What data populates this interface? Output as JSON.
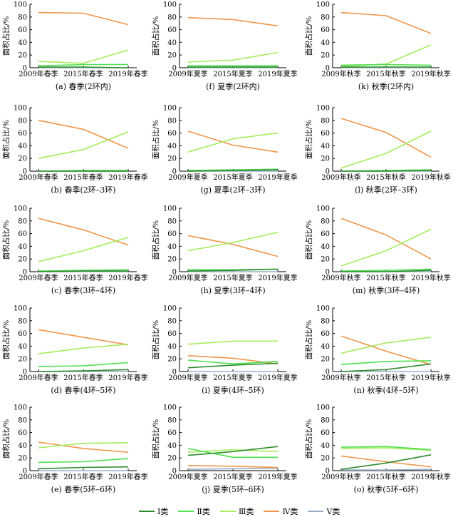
{
  "legend": [
    {
      "label": "Ⅰ类",
      "color": "#2e8b2e"
    },
    {
      "label": "Ⅱ类",
      "color": "#4ee04e"
    },
    {
      "label": "Ⅲ类",
      "color": "#a6ec5c"
    },
    {
      "label": "Ⅳ类",
      "color": "#f0964a"
    },
    {
      "label": "Ⅴ类",
      "color": "#9ab0c8"
    }
  ],
  "chart_data": [
    {
      "type": "line",
      "caption": "(a) 春季(2环内)",
      "ylabel": "面积占比/%",
      "ylim": [
        0,
        100
      ],
      "yticks": [
        0,
        20,
        40,
        60,
        80,
        100
      ],
      "categories": [
        "2009年春季",
        "2015年春季",
        "2019年春季"
      ],
      "series": [
        {
          "name": "Ⅰ类",
          "values": [
            1,
            1,
            0
          ]
        },
        {
          "name": "Ⅱ类",
          "values": [
            3,
            5,
            5
          ]
        },
        {
          "name": "Ⅲ类",
          "values": [
            10,
            7,
            28
          ]
        },
        {
          "name": "Ⅳ类",
          "values": [
            87,
            86,
            68
          ]
        },
        {
          "name": "Ⅴ类",
          "values": [
            0,
            0,
            0
          ]
        }
      ]
    },
    {
      "type": "line",
      "caption": "(f) 夏季(2环内)",
      "ylabel": "面积占比/%",
      "ylim": [
        0,
        100
      ],
      "yticks": [
        0,
        20,
        40,
        60,
        80,
        100
      ],
      "categories": [
        "2009年夏季",
        "2015年夏季",
        "2019年夏季"
      ],
      "series": [
        {
          "name": "Ⅰ类",
          "values": [
            1,
            1,
            1
          ]
        },
        {
          "name": "Ⅱ类",
          "values": [
            3,
            3,
            3
          ]
        },
        {
          "name": "Ⅲ类",
          "values": [
            9,
            12,
            24
          ]
        },
        {
          "name": "Ⅳ类",
          "values": [
            79,
            76,
            66
          ]
        },
        {
          "name": "Ⅴ类",
          "values": [
            0,
            0,
            0
          ]
        }
      ]
    },
    {
      "type": "line",
      "caption": "(k) 秋季(2环内)",
      "ylabel": "面积占比/%",
      "ylim": [
        0,
        100
      ],
      "yticks": [
        0,
        20,
        40,
        60,
        80,
        100
      ],
      "categories": [
        "2009年秋季",
        "2015年秋季",
        "2019年秋季"
      ],
      "series": [
        {
          "name": "Ⅰ类",
          "values": [
            1,
            1,
            1
          ]
        },
        {
          "name": "Ⅱ类",
          "values": [
            4,
            5,
            4
          ]
        },
        {
          "name": "Ⅲ类",
          "values": [
            2,
            6,
            36
          ]
        },
        {
          "name": "Ⅳ类",
          "values": [
            87,
            82,
            54
          ]
        },
        {
          "name": "Ⅴ类",
          "values": [
            0,
            0,
            0
          ]
        }
      ]
    },
    {
      "type": "line",
      "caption": "(b) 春季(2环–3环)",
      "ylabel": "面积占比/%",
      "ylim": [
        0,
        100
      ],
      "yticks": [
        0,
        20,
        40,
        60,
        80,
        100
      ],
      "categories": [
        "2009年春季",
        "2015年春季",
        "2019年春季"
      ],
      "series": [
        {
          "name": "Ⅰ类",
          "values": [
            0,
            0,
            0
          ]
        },
        {
          "name": "Ⅱ类",
          "values": [
            0,
            1,
            1
          ]
        },
        {
          "name": "Ⅲ类",
          "values": [
            20,
            34,
            62
          ]
        },
        {
          "name": "Ⅳ类",
          "values": [
            80,
            66,
            36
          ]
        },
        {
          "name": "Ⅴ类",
          "values": [
            0,
            0,
            0
          ]
        }
      ]
    },
    {
      "type": "line",
      "caption": "(g) 夏季(2环–3环)",
      "ylabel": "面积占比/%",
      "ylim": [
        0,
        100
      ],
      "yticks": [
        0,
        20,
        40,
        60,
        80,
        100
      ],
      "categories": [
        "2009年夏季",
        "2015年夏季",
        "2019年夏季"
      ],
      "series": [
        {
          "name": "Ⅰ类",
          "values": [
            0,
            1,
            2
          ]
        },
        {
          "name": "Ⅱ类",
          "values": [
            1,
            2,
            3
          ]
        },
        {
          "name": "Ⅲ类",
          "values": [
            30,
            51,
            60
          ]
        },
        {
          "name": "Ⅳ类",
          "values": [
            63,
            41,
            30
          ]
        },
        {
          "name": "Ⅴ类",
          "values": [
            0,
            0,
            0
          ]
        }
      ]
    },
    {
      "type": "line",
      "caption": "(l) 秋季(2环–3环)",
      "ylabel": "面积占比/%",
      "ylim": [
        0,
        100
      ],
      "yticks": [
        0,
        20,
        40,
        60,
        80,
        100
      ],
      "categories": [
        "2009年秋季",
        "2015年秋季",
        "2019年秋季"
      ],
      "series": [
        {
          "name": "Ⅰ类",
          "values": [
            0,
            0,
            1
          ]
        },
        {
          "name": "Ⅱ类",
          "values": [
            0,
            1,
            2
          ]
        },
        {
          "name": "Ⅲ类",
          "values": [
            5,
            28,
            63
          ]
        },
        {
          "name": "Ⅳ类",
          "values": [
            83,
            61,
            22
          ]
        },
        {
          "name": "Ⅴ类",
          "values": [
            0,
            0,
            0
          ]
        }
      ]
    },
    {
      "type": "line",
      "caption": "(c) 春季(3环–4环)",
      "ylabel": "面积占比/%",
      "ylim": [
        0,
        100
      ],
      "yticks": [
        0,
        20,
        40,
        60,
        80,
        100
      ],
      "categories": [
        "2009年春季",
        "2015年春季",
        "2019年春季"
      ],
      "series": [
        {
          "name": "Ⅰ类",
          "values": [
            0,
            1,
            1
          ]
        },
        {
          "name": "Ⅱ类",
          "values": [
            1,
            2,
            3
          ]
        },
        {
          "name": "Ⅲ类",
          "values": [
            16,
            33,
            54
          ]
        },
        {
          "name": "Ⅳ类",
          "values": [
            84,
            66,
            42
          ]
        },
        {
          "name": "Ⅴ类",
          "values": [
            0,
            0,
            0
          ]
        }
      ]
    },
    {
      "type": "line",
      "caption": "(h) 夏季(3环–4环)",
      "ylabel": "面积占比/%",
      "ylim": [
        0,
        100
      ],
      "yticks": [
        0,
        20,
        40,
        60,
        80,
        100
      ],
      "categories": [
        "2009年夏季",
        "2015年夏季",
        "2019年夏季"
      ],
      "series": [
        {
          "name": "Ⅰ类",
          "values": [
            1,
            2,
            4
          ]
        },
        {
          "name": "Ⅱ类",
          "values": [
            3,
            3,
            4
          ]
        },
        {
          "name": "Ⅲ类",
          "values": [
            33,
            46,
            62
          ]
        },
        {
          "name": "Ⅳ类",
          "values": [
            57,
            43,
            24
          ]
        },
        {
          "name": "Ⅴ类",
          "values": [
            0,
            0,
            0
          ]
        }
      ]
    },
    {
      "type": "line",
      "caption": "(m) 秋季(3环–4环)",
      "ylabel": "面积占比/%",
      "ylim": [
        0,
        100
      ],
      "yticks": [
        0,
        20,
        40,
        60,
        80,
        100
      ],
      "categories": [
        "2009年秋季",
        "2015年秋季",
        "2019年秋季"
      ],
      "series": [
        {
          "name": "Ⅰ类",
          "values": [
            0,
            0,
            2
          ]
        },
        {
          "name": "Ⅱ类",
          "values": [
            1,
            2,
            4
          ]
        },
        {
          "name": "Ⅲ类",
          "values": [
            9,
            33,
            67
          ]
        },
        {
          "name": "Ⅳ类",
          "values": [
            84,
            58,
            20
          ]
        },
        {
          "name": "Ⅴ类",
          "values": [
            0,
            0,
            0
          ]
        }
      ]
    },
    {
      "type": "line",
      "caption": "(d) 春季(4环–5环)",
      "ylabel": "面积占比/%",
      "ylim": [
        0,
        100
      ],
      "yticks": [
        0,
        20,
        40,
        60,
        80,
        100
      ],
      "categories": [
        "2009年春季",
        "2015年春季",
        "2019年春季"
      ],
      "series": [
        {
          "name": "Ⅰ类",
          "values": [
            0,
            1,
            3
          ]
        },
        {
          "name": "Ⅱ类",
          "values": [
            8,
            9,
            14
          ]
        },
        {
          "name": "Ⅲ类",
          "values": [
            28,
            37,
            43
          ]
        },
        {
          "name": "Ⅳ类",
          "values": [
            66,
            54,
            42
          ]
        },
        {
          "name": "Ⅴ类",
          "values": [
            0,
            0,
            0
          ]
        }
      ]
    },
    {
      "type": "line",
      "caption": "(i) 夏季(4环–5环)",
      "ylabel": "面积占比/%",
      "ylim": [
        0,
        100
      ],
      "yticks": [
        0,
        20,
        40,
        60,
        80,
        100
      ],
      "categories": [
        "2009年夏季",
        "2015年夏季",
        "2019年夏季"
      ],
      "series": [
        {
          "name": "Ⅰ类",
          "values": [
            6,
            10,
            13
          ]
        },
        {
          "name": "Ⅱ类",
          "values": [
            18,
            12,
            16
          ]
        },
        {
          "name": "Ⅲ类",
          "values": [
            43,
            48,
            48
          ]
        },
        {
          "name": "Ⅳ类",
          "values": [
            25,
            21,
            12
          ]
        },
        {
          "name": "Ⅴ类",
          "values": [
            0,
            0,
            0
          ]
        }
      ]
    },
    {
      "type": "line",
      "caption": "(n) 秋季(4环–5环)",
      "ylabel": "面积占比/%",
      "ylim": [
        0,
        100
      ],
      "yticks": [
        0,
        20,
        40,
        60,
        80,
        100
      ],
      "categories": [
        "2009年秋季",
        "2015年秋季",
        "2019年秋季"
      ],
      "series": [
        {
          "name": "Ⅰ类",
          "values": [
            0,
            3,
            12
          ]
        },
        {
          "name": "Ⅱ类",
          "values": [
            11,
            16,
            17
          ]
        },
        {
          "name": "Ⅲ类",
          "values": [
            29,
            45,
            54
          ]
        },
        {
          "name": "Ⅳ类",
          "values": [
            56,
            32,
            11
          ]
        },
        {
          "name": "Ⅴ类",
          "values": [
            0,
            0,
            0
          ]
        }
      ]
    },
    {
      "type": "line",
      "caption": "(e) 春季(5环–6环)",
      "ylabel": "面积占比/%",
      "ylim": [
        0,
        100
      ],
      "yticks": [
        0,
        20,
        40,
        60,
        80,
        100
      ],
      "categories": [
        "2009年春季",
        "2015年春季",
        "2019年春季"
      ],
      "series": [
        {
          "name": "Ⅰ类",
          "values": [
            3,
            5,
            6
          ]
        },
        {
          "name": "Ⅱ类",
          "values": [
            13,
            14,
            19
          ]
        },
        {
          "name": "Ⅲ类",
          "values": [
            36,
            43,
            44
          ]
        },
        {
          "name": "Ⅳ类",
          "values": [
            45,
            35,
            29
          ]
        },
        {
          "name": "Ⅴ类",
          "values": [
            0,
            0,
            0
          ]
        }
      ]
    },
    {
      "type": "line",
      "caption": "(j) 夏季(5环–6环)",
      "ylabel": "面积占比/%",
      "ylim": [
        0,
        100
      ],
      "yticks": [
        0,
        20,
        40,
        60,
        80,
        100
      ],
      "categories": [
        "2009年夏季",
        "2015年夏季",
        "2019年夏季"
      ],
      "series": [
        {
          "name": "Ⅰ类",
          "values": [
            24,
            30,
            38
          ]
        },
        {
          "name": "Ⅱ类",
          "values": [
            35,
            21,
            21
          ]
        },
        {
          "name": "Ⅲ类",
          "values": [
            29,
            33,
            30
          ]
        },
        {
          "name": "Ⅳ类",
          "values": [
            8,
            7,
            5
          ]
        },
        {
          "name": "Ⅴ类",
          "values": [
            2,
            3,
            4
          ]
        }
      ]
    },
    {
      "type": "line",
      "caption": "(o) 秋季(5环–6环)",
      "ylabel": "面积占比/%",
      "ylim": [
        0,
        100
      ],
      "yticks": [
        0,
        20,
        40,
        60,
        80,
        100
      ],
      "categories": [
        "2009年秋季",
        "2015年秋季",
        "2019年秋季"
      ],
      "series": [
        {
          "name": "Ⅰ类",
          "values": [
            2,
            12,
            25
          ]
        },
        {
          "name": "Ⅱ类",
          "values": [
            37,
            38,
            33
          ]
        },
        {
          "name": "Ⅲ类",
          "values": [
            35,
            36,
            32
          ]
        },
        {
          "name": "Ⅳ类",
          "values": [
            23,
            14,
            6
          ]
        },
        {
          "name": "Ⅴ类",
          "values": [
            1,
            1,
            2
          ]
        }
      ]
    }
  ]
}
